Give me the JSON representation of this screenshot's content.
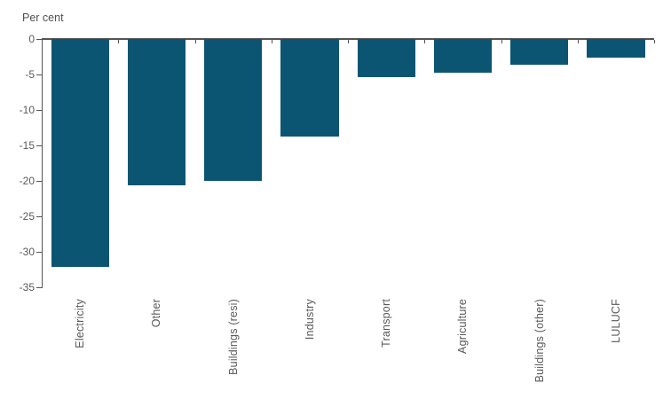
{
  "chart_data": {
    "type": "bar",
    "title": "",
    "ylabel": "Per cent",
    "xlabel": "",
    "categories": [
      "Electricity",
      "Other",
      "Buildings (resi)",
      "Industry",
      "Transport",
      "Agriculture",
      "Buildings (other)",
      "LULUCF"
    ],
    "values": [
      -32.1,
      -20.6,
      -20.0,
      -13.8,
      -5.4,
      -4.7,
      -3.6,
      -2.6
    ],
    "ylim": [
      -35,
      0
    ],
    "yticks": [
      0,
      -5,
      -10,
      -15,
      -20,
      -25,
      -30,
      -35
    ],
    "grid": false,
    "legend_position": "none",
    "bar_color": "#0b5573",
    "axis_color": "#545454",
    "tick_label_color": "#595959"
  }
}
